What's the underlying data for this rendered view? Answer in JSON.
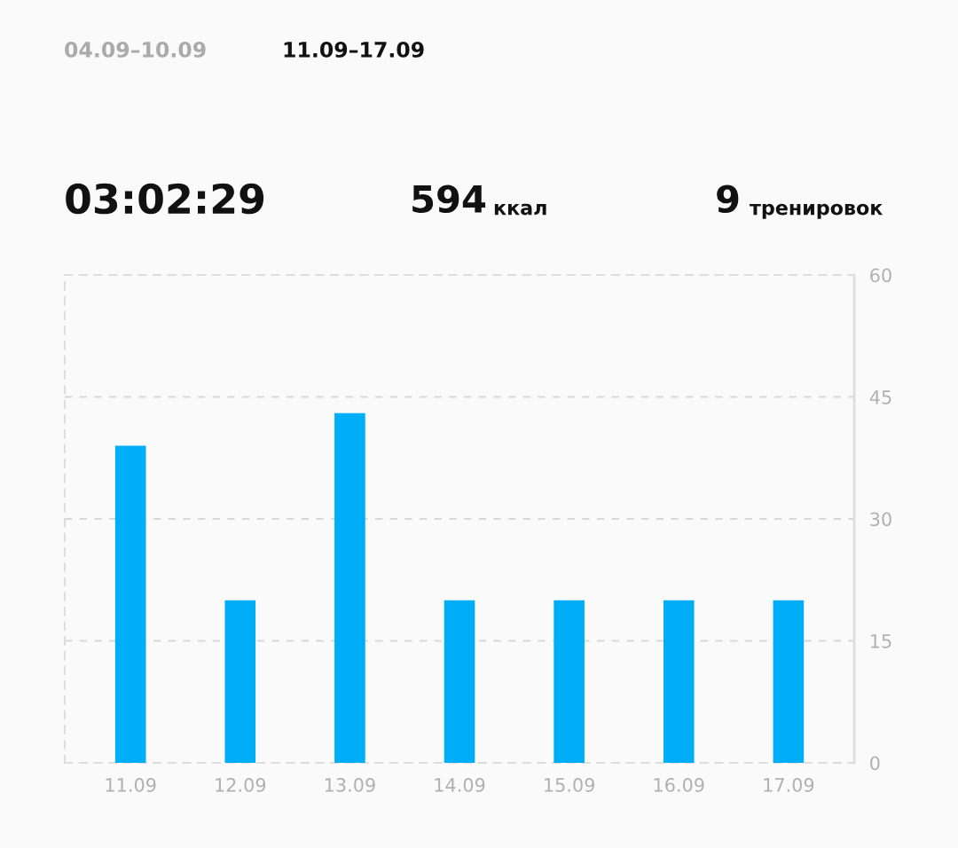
{
  "chart_data": {
    "type": "bar",
    "title": "11.09–17.09",
    "annotations": [
      "04.09–10.09",
      "03:02:29",
      "594",
      "ккал",
      "9",
      "тренировок"
    ],
    "categories": [
      "11.09",
      "12.09",
      "13.09",
      "14.09",
      "15.09",
      "16.09",
      "17.09"
    ],
    "values": [
      39,
      20,
      43,
      20,
      20,
      20,
      20
    ],
    "color": "#00aef8",
    "ylim": [
      0,
      60
    ],
    "yticks": [
      0,
      15,
      30,
      45,
      60
    ],
    "grid": "y"
  }
}
